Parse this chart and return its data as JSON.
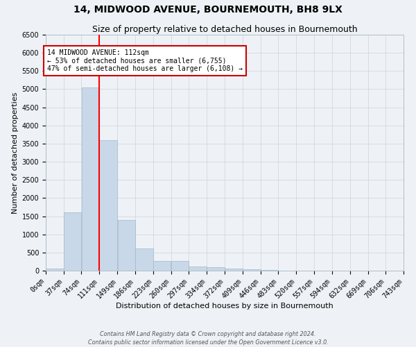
{
  "title": "14, MIDWOOD AVENUE, BOURNEMOUTH, BH8 9LX",
  "subtitle": "Size of property relative to detached houses in Bournemouth",
  "xlabel": "Distribution of detached houses by size in Bournemouth",
  "ylabel": "Number of detached properties",
  "footer_line1": "Contains HM Land Registry data © Crown copyright and database right 2024.",
  "footer_line2": "Contains public sector information licensed under the Open Government Licence v3.0.",
  "bar_edges": [
    0,
    37,
    74,
    111,
    149,
    186,
    223,
    260,
    297,
    334,
    372,
    409,
    446,
    483,
    520,
    557,
    594,
    632,
    669,
    706,
    743
  ],
  "bar_heights": [
    50,
    1600,
    5050,
    3600,
    1400,
    620,
    270,
    270,
    120,
    100,
    60,
    30,
    10,
    5,
    3,
    2,
    2,
    1,
    1,
    1
  ],
  "tick_labels": [
    "0sqm",
    "37sqm",
    "74sqm",
    "111sqm",
    "149sqm",
    "186sqm",
    "223sqm",
    "260sqm",
    "297sqm",
    "334sqm",
    "372sqm",
    "409sqm",
    "446sqm",
    "483sqm",
    "520sqm",
    "557sqm",
    "594sqm",
    "632sqm",
    "669sqm",
    "706sqm",
    "743sqm"
  ],
  "bar_color": "#c8d8e8",
  "bar_edge_color": "#a0b8cc",
  "red_line_x": 111,
  "annotation_text": "14 MIDWOOD AVENUE: 112sqm\n← 53% of detached houses are smaller (6,755)\n47% of semi-detached houses are larger (6,108) →",
  "annotation_box_color": "#ffffff",
  "annotation_box_edge_color": "#cc0000",
  "ylim": [
    0,
    6500
  ],
  "yticks": [
    0,
    500,
    1000,
    1500,
    2000,
    2500,
    3000,
    3500,
    4000,
    4500,
    5000,
    5500,
    6000,
    6500
  ],
  "grid_color": "#d0d8e0",
  "background_color": "#eef2f6",
  "title_fontsize": 10,
  "subtitle_fontsize": 9,
  "axis_fontsize": 8,
  "tick_fontsize": 7,
  "annotation_fontsize": 7
}
